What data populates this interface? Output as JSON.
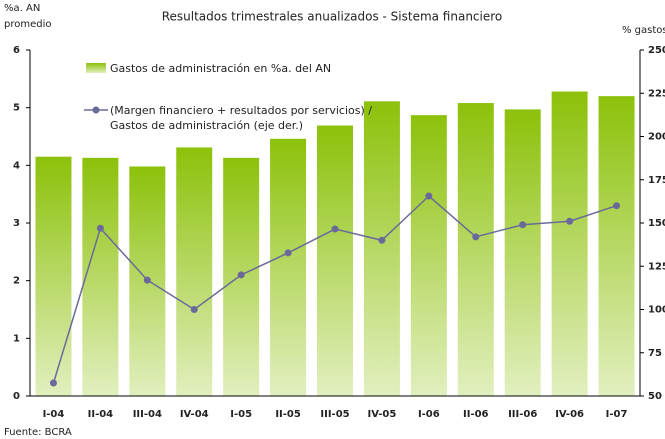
{
  "chart_data": {
    "type": "bar_line",
    "title": "Resultados trimestrales anualizados - Sistema financiero",
    "ylabel": [
      "%a. AN",
      "promedio"
    ],
    "y2label": "% gastos",
    "source": "Fuente: BCRA",
    "categories": [
      "I-04",
      "II-04",
      "III-04",
      "IV-04",
      "I-05",
      "II-05",
      "III-05",
      "IV-05",
      "I-06",
      "II-06",
      "III-06",
      "IV-06",
      "I-07"
    ],
    "series": [
      {
        "name": "Gastos de administración en %a. del AN",
        "type": "bar",
        "color": "#8cc10a",
        "values": [
          4.15,
          4.13,
          3.98,
          4.31,
          4.13,
          4.46,
          4.69,
          5.11,
          4.87,
          5.08,
          4.97,
          5.28,
          5.2
        ]
      },
      {
        "name": "(Margen financiero + resultados por servicios) / Gastos de administración (eje der.)",
        "type": "line",
        "axis": "y2",
        "color": "#6a6a9a",
        "values": [
          57.5,
          147,
          117,
          100,
          120,
          132.7,
          146.5,
          140,
          165.6,
          142,
          149,
          151,
          160
        ]
      }
    ],
    "ylim": [
      0,
      6
    ],
    "yticks": [
      0,
      1,
      2,
      3,
      4,
      5,
      6
    ],
    "y2lim": [
      50,
      250
    ],
    "y2ticks": [
      50,
      75,
      100,
      125,
      150,
      175,
      200,
      225,
      250
    ]
  }
}
